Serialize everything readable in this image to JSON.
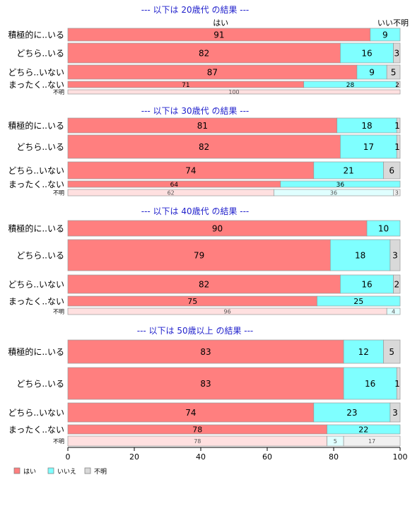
{
  "chart_data": {
    "type": "bar",
    "orientation": "horizontal",
    "stacked": true,
    "percent": true,
    "xlim": [
      0,
      100
    ],
    "xticks": [
      0,
      20,
      40,
      60,
      80,
      100
    ],
    "grid": false,
    "legend_position": "bottom-left",
    "series_names": [
      "はい",
      "いいえ",
      "不明"
    ],
    "series_colors": [
      "#ff7f7f",
      "#7fffff",
      "#d9d9d9"
    ],
    "top_labels": [
      "はい",
      "いい",
      "不明"
    ],
    "panels": [
      {
        "title": "--- 以下は 20歳代 の結果 ---",
        "rows": [
          {
            "label": "積極的に..いる",
            "values": [
              91,
              9,
              0
            ],
            "value_labels": [
              "91",
              "9",
              ""
            ]
          },
          {
            "label": "どちら..いる",
            "values": [
              82,
              16,
              3
            ],
            "value_labels": [
              "82",
              "16",
              "3"
            ]
          },
          {
            "label": "どちら..いない",
            "values": [
              87,
              9,
              5
            ],
            "value_labels": [
              "87",
              "9",
              "5"
            ]
          },
          {
            "label": "まったく..ない",
            "values": [
              71,
              28,
              2
            ],
            "value_labels": [
              "71",
              "28",
              "2"
            ]
          },
          {
            "label": "不明",
            "values": [
              100,
              0,
              0
            ],
            "value_labels": [
              "100",
              "",
              ""
            ]
          }
        ]
      },
      {
        "title": "--- 以下は 30歳代 の結果 ---",
        "rows": [
          {
            "label": "積極的に..いる",
            "values": [
              81,
              18,
              1
            ],
            "value_labels": [
              "81",
              "18",
              "1"
            ]
          },
          {
            "label": "どちら..いる",
            "values": [
              82,
              17,
              1
            ],
            "value_labels": [
              "82",
              "17",
              "1"
            ]
          },
          {
            "label": "どちら..いない",
            "values": [
              74,
              21,
              6
            ],
            "value_labels": [
              "74",
              "21",
              "6"
            ]
          },
          {
            "label": "まったく..ない",
            "values": [
              64,
              36,
              0
            ],
            "value_labels": [
              "64",
              "36",
              ""
            ]
          },
          {
            "label": "不明",
            "values": [
              62,
              36,
              3
            ],
            "value_labels": [
              "62",
              "36",
              "3"
            ]
          }
        ]
      },
      {
        "title": "--- 以下は 40歳代 の結果 ---",
        "rows": [
          {
            "label": "積極的に..いる",
            "values": [
              90,
              10,
              0
            ],
            "value_labels": [
              "90",
              "10",
              ""
            ]
          },
          {
            "label": "どちら..いる",
            "values": [
              79,
              18,
              3
            ],
            "value_labels": [
              "79",
              "18",
              "3"
            ]
          },
          {
            "label": "どちら..いない",
            "values": [
              82,
              16,
              2
            ],
            "value_labels": [
              "82",
              "16",
              "2"
            ]
          },
          {
            "label": "まったく..ない",
            "values": [
              75,
              25,
              0
            ],
            "value_labels": [
              "75",
              "25",
              ""
            ]
          },
          {
            "label": "不明",
            "values": [
              96,
              4,
              0
            ],
            "value_labels": [
              "96",
              "4",
              ""
            ]
          }
        ]
      },
      {
        "title": "--- 以下は 50歳以上 の結果 ---",
        "rows": [
          {
            "label": "積極的に..いる",
            "values": [
              83,
              12,
              5
            ],
            "value_labels": [
              "83",
              "12",
              "5"
            ]
          },
          {
            "label": "どちら..いる",
            "values": [
              83,
              16,
              1
            ],
            "value_labels": [
              "83",
              "16",
              "1"
            ]
          },
          {
            "label": "どちら..いない",
            "values": [
              74,
              23,
              3
            ],
            "value_labels": [
              "74",
              "23",
              "3"
            ]
          },
          {
            "label": "まったく..ない",
            "values": [
              78,
              22,
              0
            ],
            "value_labels": [
              "78",
              "22",
              ""
            ]
          },
          {
            "label": "不明",
            "values": [
              78,
              5,
              17
            ],
            "value_labels": [
              "78",
              "5",
              "17"
            ]
          }
        ]
      }
    ]
  }
}
